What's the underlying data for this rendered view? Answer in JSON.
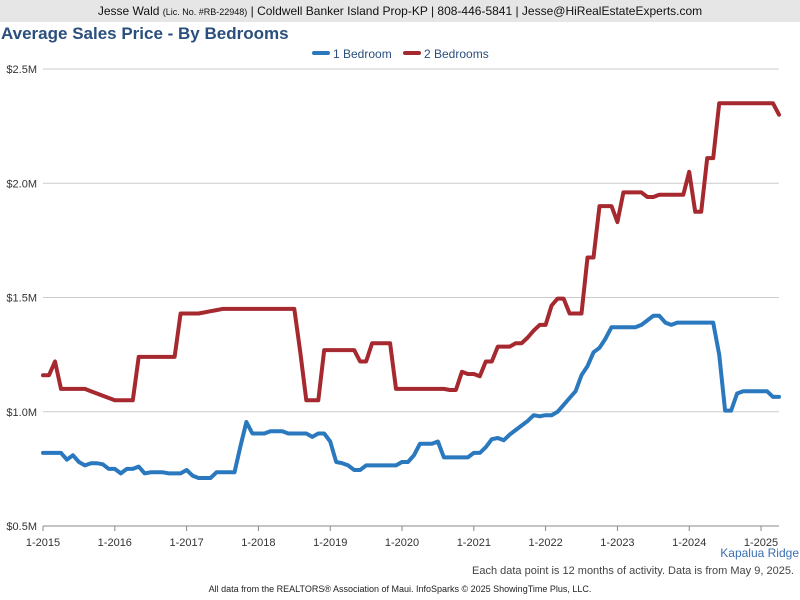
{
  "header": {
    "agent": "Jesse Wald",
    "license": "(Lic. No. #RB-22948)",
    "details": "| Coldwell Banker Island Prop-KP | 808-446-5841 | Jesse@HiRealEstateExperts.com"
  },
  "location": "Kapalua Ridge",
  "note": "Each data point is 12 months of activity. Data is from May 9, 2025.",
  "source": "All data from the REALTORS® Association of Maui. InfoSparks © 2025 ShowingTime Plus, LLC.",
  "colors": {
    "series_1": "#2a78bd",
    "series_2": "#a5292f",
    "grid": "#cccccc",
    "axis": "#888888"
  },
  "chart_data": {
    "type": "line",
    "title": "Average Sales Price - By Bedrooms",
    "xlabel": "",
    "ylabel": "",
    "ylim": [
      500000,
      2500000
    ],
    "y_ticks": [
      500000,
      1000000,
      1500000,
      2000000,
      2500000
    ],
    "y_tick_labels": [
      "$0.5M",
      "$1.0M",
      "$1.5M",
      "$2.0M",
      "$2.5M"
    ],
    "xlim": [
      "2015-01",
      "2025-04"
    ],
    "x_tick_labels": [
      "1-2015",
      "1-2016",
      "1-2017",
      "1-2018",
      "1-2019",
      "1-2020",
      "1-2021",
      "1-2022",
      "1-2023",
      "1-2024",
      "1-2025"
    ],
    "grid": true,
    "legend": "top-center",
    "series": [
      {
        "name": "1 Bedroom",
        "color": "#2a78bd",
        "points": [
          [
            "2015-01",
            820000
          ],
          [
            "2015-02",
            820000
          ],
          [
            "2015-03",
            820000
          ],
          [
            "2015-04",
            820000
          ],
          [
            "2015-05",
            790000
          ],
          [
            "2015-06",
            810000
          ],
          [
            "2015-07",
            780000
          ],
          [
            "2015-08",
            765000
          ],
          [
            "2015-09",
            775000
          ],
          [
            "2015-10",
            775000
          ],
          [
            "2015-11",
            770000
          ],
          [
            "2015-12",
            750000
          ],
          [
            "2016-01",
            750000
          ],
          [
            "2016-02",
            730000
          ],
          [
            "2016-03",
            750000
          ],
          [
            "2016-04",
            750000
          ],
          [
            "2016-05",
            760000
          ],
          [
            "2016-06",
            730000
          ],
          [
            "2016-07",
            735000
          ],
          [
            "2016-08",
            735000
          ],
          [
            "2016-09",
            735000
          ],
          [
            "2016-10",
            730000
          ],
          [
            "2016-11",
            730000
          ],
          [
            "2016-12",
            730000
          ],
          [
            "2017-01",
            745000
          ],
          [
            "2017-02",
            720000
          ],
          [
            "2017-03",
            710000
          ],
          [
            "2017-04",
            710000
          ],
          [
            "2017-05",
            710000
          ],
          [
            "2017-06",
            735000
          ],
          [
            "2017-07",
            735000
          ],
          [
            "2017-08",
            735000
          ],
          [
            "2017-09",
            735000
          ],
          [
            "2017-10",
            850000
          ],
          [
            "2017-11",
            955000
          ],
          [
            "2017-12",
            905000
          ],
          [
            "2018-01",
            905000
          ],
          [
            "2018-02",
            905000
          ],
          [
            "2018-03",
            915000
          ],
          [
            "2018-04",
            915000
          ],
          [
            "2018-05",
            915000
          ],
          [
            "2018-06",
            905000
          ],
          [
            "2018-07",
            905000
          ],
          [
            "2018-08",
            905000
          ],
          [
            "2018-09",
            905000
          ],
          [
            "2018-10",
            890000
          ],
          [
            "2018-11",
            905000
          ],
          [
            "2018-12",
            905000
          ],
          [
            "2019-01",
            870000
          ],
          [
            "2019-02",
            780000
          ],
          [
            "2019-03",
            775000
          ],
          [
            "2019-04",
            765000
          ],
          [
            "2019-05",
            745000
          ],
          [
            "2019-06",
            745000
          ],
          [
            "2019-07",
            765000
          ],
          [
            "2019-08",
            765000
          ],
          [
            "2019-09",
            765000
          ],
          [
            "2019-10",
            765000
          ],
          [
            "2019-11",
            765000
          ],
          [
            "2019-12",
            765000
          ],
          [
            "2020-01",
            780000
          ],
          [
            "2020-02",
            780000
          ],
          [
            "2020-03",
            810000
          ],
          [
            "2020-04",
            860000
          ],
          [
            "2020-05",
            860000
          ],
          [
            "2020-06",
            860000
          ],
          [
            "2020-07",
            870000
          ],
          [
            "2020-08",
            800000
          ],
          [
            "2020-09",
            800000
          ],
          [
            "2020-10",
            800000
          ],
          [
            "2020-11",
            800000
          ],
          [
            "2020-12",
            800000
          ],
          [
            "2021-01",
            820000
          ],
          [
            "2021-02",
            820000
          ],
          [
            "2021-03",
            845000
          ],
          [
            "2021-04",
            880000
          ],
          [
            "2021-05",
            885000
          ],
          [
            "2021-06",
            875000
          ],
          [
            "2021-07",
            900000
          ],
          [
            "2021-08",
            920000
          ],
          [
            "2021-09",
            940000
          ],
          [
            "2021-10",
            960000
          ],
          [
            "2021-11",
            985000
          ],
          [
            "2021-12",
            980000
          ],
          [
            "2022-01",
            985000
          ],
          [
            "2022-02",
            985000
          ],
          [
            "2022-03",
            1000000
          ],
          [
            "2022-04",
            1030000
          ],
          [
            "2022-05",
            1060000
          ],
          [
            "2022-06",
            1090000
          ],
          [
            "2022-07",
            1160000
          ],
          [
            "2022-08",
            1200000
          ],
          [
            "2022-09",
            1260000
          ],
          [
            "2022-10",
            1280000
          ],
          [
            "2022-11",
            1320000
          ],
          [
            "2022-12",
            1370000
          ],
          [
            "2023-01",
            1370000
          ],
          [
            "2023-02",
            1370000
          ],
          [
            "2023-03",
            1370000
          ],
          [
            "2023-04",
            1370000
          ],
          [
            "2023-05",
            1380000
          ],
          [
            "2023-06",
            1400000
          ],
          [
            "2023-07",
            1420000
          ],
          [
            "2023-08",
            1420000
          ],
          [
            "2023-09",
            1390000
          ],
          [
            "2023-10",
            1380000
          ],
          [
            "2023-11",
            1390000
          ],
          [
            "2023-12",
            1390000
          ],
          [
            "2024-01",
            1390000
          ],
          [
            "2024-02",
            1390000
          ],
          [
            "2024-03",
            1390000
          ],
          [
            "2024-04",
            1390000
          ],
          [
            "2024-05",
            1390000
          ],
          [
            "2024-06",
            1250000
          ],
          [
            "2024-07",
            1005000
          ],
          [
            "2024-08",
            1005000
          ],
          [
            "2024-09",
            1080000
          ],
          [
            "2024-10",
            1090000
          ],
          [
            "2024-11",
            1090000
          ],
          [
            "2024-12",
            1090000
          ],
          [
            "2025-01",
            1090000
          ],
          [
            "2025-02",
            1090000
          ],
          [
            "2025-03",
            1065000
          ],
          [
            "2025-04",
            1065000
          ]
        ]
      },
      {
        "name": "2 Bedrooms",
        "color": "#a5292f",
        "points": [
          [
            "2015-01",
            1160000
          ],
          [
            "2015-02",
            1160000
          ],
          [
            "2015-03",
            1220000
          ],
          [
            "2015-04",
            1100000
          ],
          [
            "2015-05",
            1100000
          ],
          [
            "2015-06",
            1100000
          ],
          [
            "2015-07",
            1100000
          ],
          [
            "2015-08",
            1100000
          ],
          [
            "2015-09",
            1090000
          ],
          [
            "2015-10",
            1080000
          ],
          [
            "2015-11",
            1070000
          ],
          [
            "2015-12",
            1060000
          ],
          [
            "2016-01",
            1050000
          ],
          [
            "2016-02",
            1050000
          ],
          [
            "2016-03",
            1050000
          ],
          [
            "2016-04",
            1050000
          ],
          [
            "2016-05",
            1240000
          ],
          [
            "2016-06",
            1240000
          ],
          [
            "2016-07",
            1240000
          ],
          [
            "2016-08",
            1240000
          ],
          [
            "2016-09",
            1240000
          ],
          [
            "2016-10",
            1240000
          ],
          [
            "2016-11",
            1240000
          ],
          [
            "2016-12",
            1430000
          ],
          [
            "2017-01",
            1430000
          ],
          [
            "2017-02",
            1430000
          ],
          [
            "2017-03",
            1430000
          ],
          [
            "2017-04",
            1435000
          ],
          [
            "2017-05",
            1440000
          ],
          [
            "2017-06",
            1445000
          ],
          [
            "2017-07",
            1450000
          ],
          [
            "2017-08",
            1450000
          ],
          [
            "2017-09",
            1450000
          ],
          [
            "2017-10",
            1450000
          ],
          [
            "2017-11",
            1450000
          ],
          [
            "2017-12",
            1450000
          ],
          [
            "2018-01",
            1450000
          ],
          [
            "2018-02",
            1450000
          ],
          [
            "2018-03",
            1450000
          ],
          [
            "2018-04",
            1450000
          ],
          [
            "2018-05",
            1450000
          ],
          [
            "2018-06",
            1450000
          ],
          [
            "2018-07",
            1450000
          ],
          [
            "2018-08",
            1260000
          ],
          [
            "2018-09",
            1050000
          ],
          [
            "2018-10",
            1050000
          ],
          [
            "2018-11",
            1050000
          ],
          [
            "2018-12",
            1270000
          ],
          [
            "2019-01",
            1270000
          ],
          [
            "2019-02",
            1270000
          ],
          [
            "2019-03",
            1270000
          ],
          [
            "2019-04",
            1270000
          ],
          [
            "2019-05",
            1270000
          ],
          [
            "2019-06",
            1220000
          ],
          [
            "2019-07",
            1220000
          ],
          [
            "2019-08",
            1300000
          ],
          [
            "2019-09",
            1300000
          ],
          [
            "2019-10",
            1300000
          ],
          [
            "2019-11",
            1300000
          ],
          [
            "2019-12",
            1100000
          ],
          [
            "2020-01",
            1100000
          ],
          [
            "2020-02",
            1100000
          ],
          [
            "2020-03",
            1100000
          ],
          [
            "2020-04",
            1100000
          ],
          [
            "2020-05",
            1100000
          ],
          [
            "2020-06",
            1100000
          ],
          [
            "2020-07",
            1100000
          ],
          [
            "2020-08",
            1100000
          ],
          [
            "2020-09",
            1095000
          ],
          [
            "2020-10",
            1095000
          ],
          [
            "2020-11",
            1175000
          ],
          [
            "2020-12",
            1165000
          ],
          [
            "2021-01",
            1165000
          ],
          [
            "2021-02",
            1155000
          ],
          [
            "2021-03",
            1220000
          ],
          [
            "2021-04",
            1220000
          ],
          [
            "2021-05",
            1285000
          ],
          [
            "2021-06",
            1285000
          ],
          [
            "2021-07",
            1285000
          ],
          [
            "2021-08",
            1300000
          ],
          [
            "2021-09",
            1300000
          ],
          [
            "2021-10",
            1325000
          ],
          [
            "2021-11",
            1355000
          ],
          [
            "2021-12",
            1380000
          ],
          [
            "2022-01",
            1380000
          ],
          [
            "2022-02",
            1465000
          ],
          [
            "2022-03",
            1495000
          ],
          [
            "2022-04",
            1495000
          ],
          [
            "2022-05",
            1430000
          ],
          [
            "2022-06",
            1430000
          ],
          [
            "2022-07",
            1430000
          ],
          [
            "2022-08",
            1675000
          ],
          [
            "2022-09",
            1675000
          ],
          [
            "2022-10",
            1900000
          ],
          [
            "2022-11",
            1900000
          ],
          [
            "2022-12",
            1900000
          ],
          [
            "2023-01",
            1830000
          ],
          [
            "2023-02",
            1960000
          ],
          [
            "2023-03",
            1960000
          ],
          [
            "2023-04",
            1960000
          ],
          [
            "2023-05",
            1960000
          ],
          [
            "2023-06",
            1940000
          ],
          [
            "2023-07",
            1940000
          ],
          [
            "2023-08",
            1950000
          ],
          [
            "2023-09",
            1950000
          ],
          [
            "2023-10",
            1950000
          ],
          [
            "2023-11",
            1950000
          ],
          [
            "2023-12",
            1950000
          ],
          [
            "2024-01",
            2050000
          ],
          [
            "2024-02",
            1875000
          ],
          [
            "2024-03",
            1875000
          ],
          [
            "2024-04",
            2110000
          ],
          [
            "2024-05",
            2110000
          ],
          [
            "2024-06",
            2350000
          ],
          [
            "2024-07",
            2350000
          ],
          [
            "2024-08",
            2350000
          ],
          [
            "2024-09",
            2350000
          ],
          [
            "2024-10",
            2350000
          ],
          [
            "2024-11",
            2350000
          ],
          [
            "2024-12",
            2350000
          ],
          [
            "2025-01",
            2350000
          ],
          [
            "2025-02",
            2350000
          ],
          [
            "2025-03",
            2350000
          ],
          [
            "2025-04",
            2300000
          ]
        ]
      }
    ]
  }
}
